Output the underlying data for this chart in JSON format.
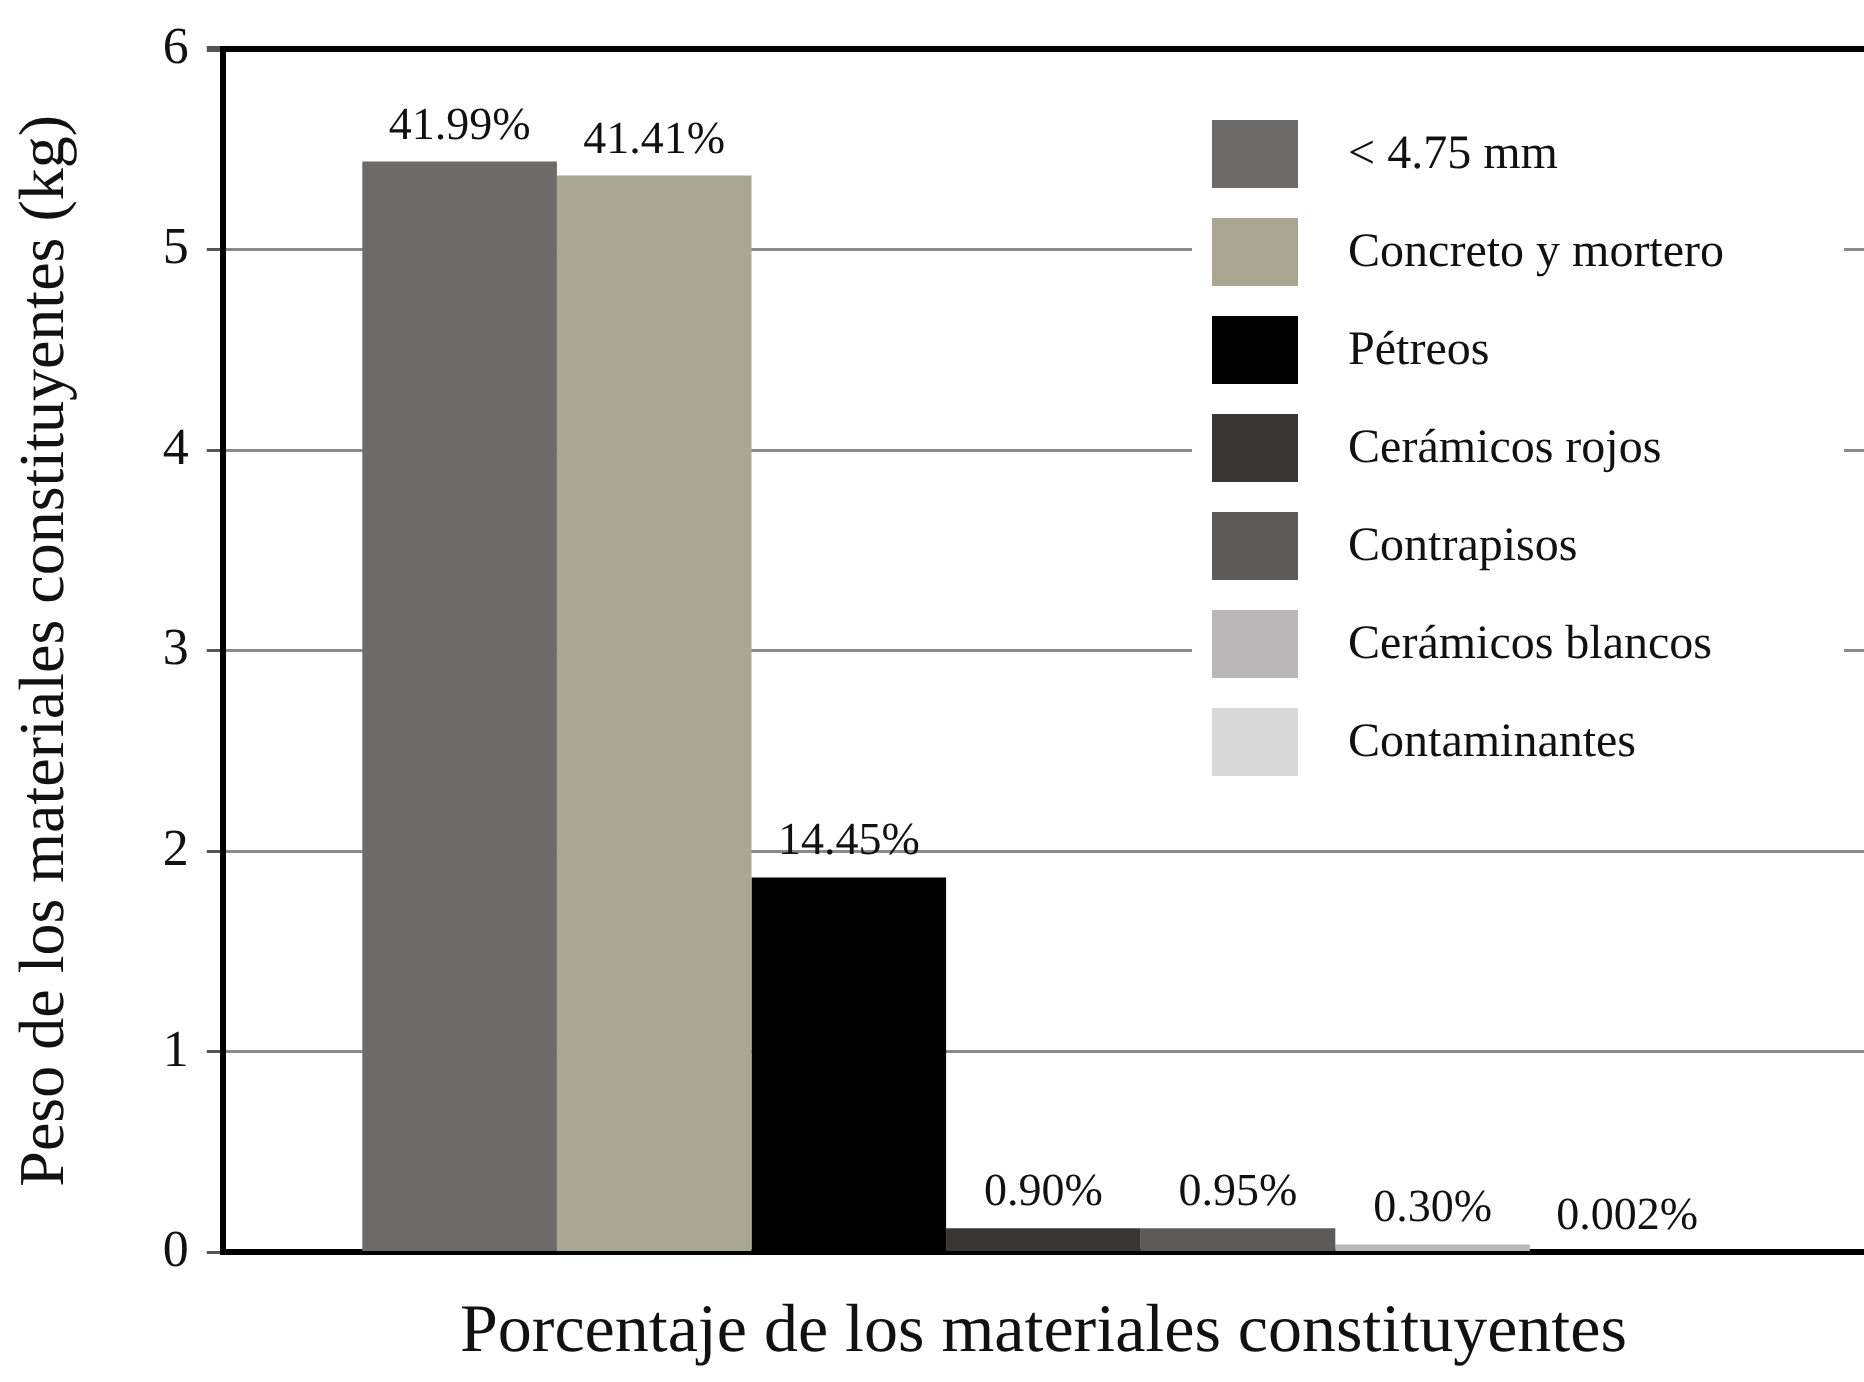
{
  "chart_data": {
    "type": "bar",
    "xlabel": "Porcentaje de los materiales constituyentes",
    "ylabel": "Peso de los materiales constituyentes (kg)",
    "categories": [
      null
    ],
    "series": [
      {
        "name": "< 4.75 mm",
        "color": "#6d6a6a",
        "values": [
          5.44
        ]
      },
      {
        "name": "Concreto y mortero",
        "color": "#a9a792",
        "values": [
          5.37
        ]
      },
      {
        "name": "Pétreos",
        "color": "#000000",
        "values": [
          1.87
        ]
      },
      {
        "name": "Cerámicos rojos",
        "color": "#3a3634",
        "values": [
          0.12
        ]
      },
      {
        "name": "Contrapisos",
        "color": "#5d5a5a",
        "values": [
          0.12
        ]
      },
      {
        "name": "Cerámicos blancos",
        "color": "#b9b7b7",
        "values": [
          0.04
        ]
      },
      {
        "name": "Contaminantes",
        "color": "#d9d9d9",
        "values": [
          0
        ]
      }
    ],
    "annotations": [
      {
        "text": "41.99%",
        "y": 5.44
      },
      {
        "text": "41.41%",
        "y": 5.37
      },
      {
        "text": "14.45%",
        "y": 1.87
      },
      {
        "text": "0.90%",
        "y": 0.12
      },
      {
        "text": "0.95%",
        "y": 0.12
      },
      {
        "text": "0.30%",
        "y": 0.04
      },
      "0.002%"
    ],
    "ylim": [
      0,
      6
    ],
    "yticks": [
      0,
      1,
      2,
      3,
      4,
      5,
      6
    ],
    "grid": "y",
    "legend": "top right"
  }
}
